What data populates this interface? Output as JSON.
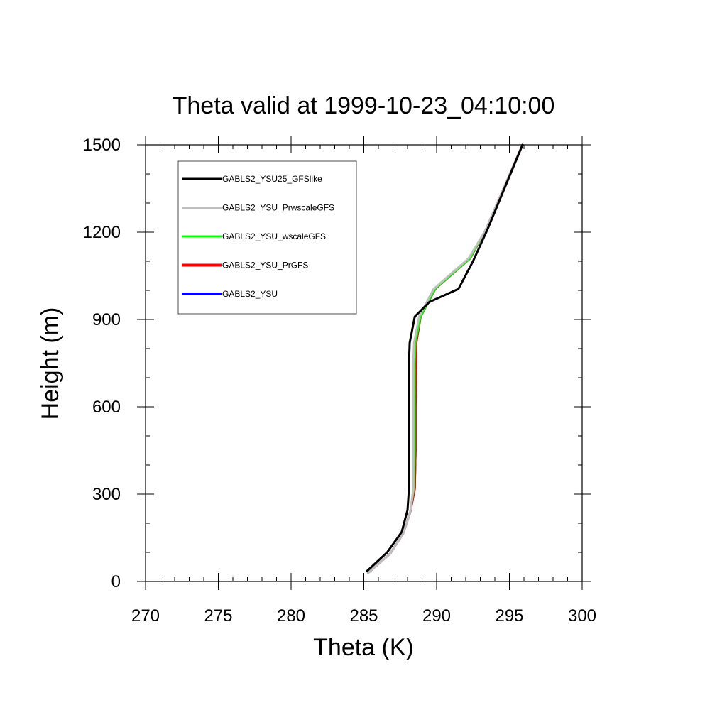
{
  "chart_data": {
    "type": "line",
    "title": "Theta valid at 1999-10-23_04:10:00",
    "xlabel": "Theta (K)",
    "ylabel": "Height (m)",
    "xlim": [
      270,
      300
    ],
    "ylim": [
      0,
      1500
    ],
    "xticks": [
      270,
      275,
      280,
      285,
      290,
      295,
      300
    ],
    "yticks": [
      0,
      300,
      600,
      900,
      1200,
      1500
    ],
    "legend_position": "top-left",
    "series": [
      {
        "name": "GABLS2_YSU25_GFSlike",
        "color": "#000000",
        "points": [
          [
            285.2,
            35
          ],
          [
            286.6,
            100
          ],
          [
            287.6,
            170
          ],
          [
            288.0,
            245
          ],
          [
            288.1,
            320
          ],
          [
            288.1,
            450
          ],
          [
            288.1,
            600
          ],
          [
            288.1,
            750
          ],
          [
            288.15,
            820
          ],
          [
            288.5,
            910
          ],
          [
            289.5,
            960
          ],
          [
            291.5,
            1005
          ],
          [
            292.5,
            1100
          ],
          [
            293.5,
            1210
          ],
          [
            295.9,
            1500
          ]
        ]
      },
      {
        "name": "GABLS2_YSU_PrwscaleGFS",
        "color": "#bfbfbf",
        "points": [
          [
            285.3,
            30
          ],
          [
            286.8,
            95
          ],
          [
            287.7,
            165
          ],
          [
            288.2,
            240
          ],
          [
            288.4,
            320
          ],
          [
            288.4,
            450
          ],
          [
            288.4,
            600
          ],
          [
            288.4,
            750
          ],
          [
            288.45,
            820
          ],
          [
            288.8,
            910
          ],
          [
            289.8,
            1005
          ],
          [
            292.2,
            1110
          ],
          [
            293.4,
            1210
          ],
          [
            295.9,
            1500
          ]
        ]
      },
      {
        "name": "GABLS2_YSU_wscaleGFS",
        "color": "#00ff00",
        "points": [
          [
            285.3,
            30
          ],
          [
            286.8,
            95
          ],
          [
            287.7,
            165
          ],
          [
            288.2,
            240
          ],
          [
            288.45,
            320
          ],
          [
            288.5,
            450
          ],
          [
            288.5,
            600
          ],
          [
            288.5,
            750
          ],
          [
            288.55,
            820
          ],
          [
            288.9,
            910
          ],
          [
            289.9,
            1005
          ],
          [
            292.3,
            1110
          ],
          [
            293.4,
            1210
          ],
          [
            295.9,
            1500
          ]
        ]
      },
      {
        "name": "GABLS2_YSU_PrGFS",
        "color": "#ff0000",
        "points": [
          [
            285.3,
            30
          ],
          [
            286.8,
            95
          ],
          [
            287.7,
            165
          ],
          [
            288.2,
            240
          ],
          [
            288.5,
            320
          ],
          [
            288.55,
            450
          ],
          [
            288.55,
            600
          ],
          [
            288.6,
            750
          ],
          [
            288.6,
            820
          ],
          [
            288.9,
            910
          ],
          [
            289.9,
            1005
          ],
          [
            292.3,
            1110
          ],
          [
            293.4,
            1210
          ],
          [
            295.9,
            1500
          ]
        ]
      },
      {
        "name": "GABLS2_YSU",
        "color": "#0000ff",
        "points": [
          [
            285.3,
            30
          ],
          [
            286.8,
            95
          ],
          [
            287.7,
            165
          ],
          [
            288.2,
            240
          ],
          [
            288.5,
            320
          ],
          [
            288.55,
            450
          ],
          [
            288.55,
            600
          ],
          [
            288.6,
            750
          ],
          [
            288.6,
            820
          ],
          [
            288.9,
            910
          ],
          [
            289.9,
            1005
          ],
          [
            292.3,
            1110
          ],
          [
            293.4,
            1210
          ],
          [
            295.9,
            1500
          ]
        ]
      }
    ]
  }
}
